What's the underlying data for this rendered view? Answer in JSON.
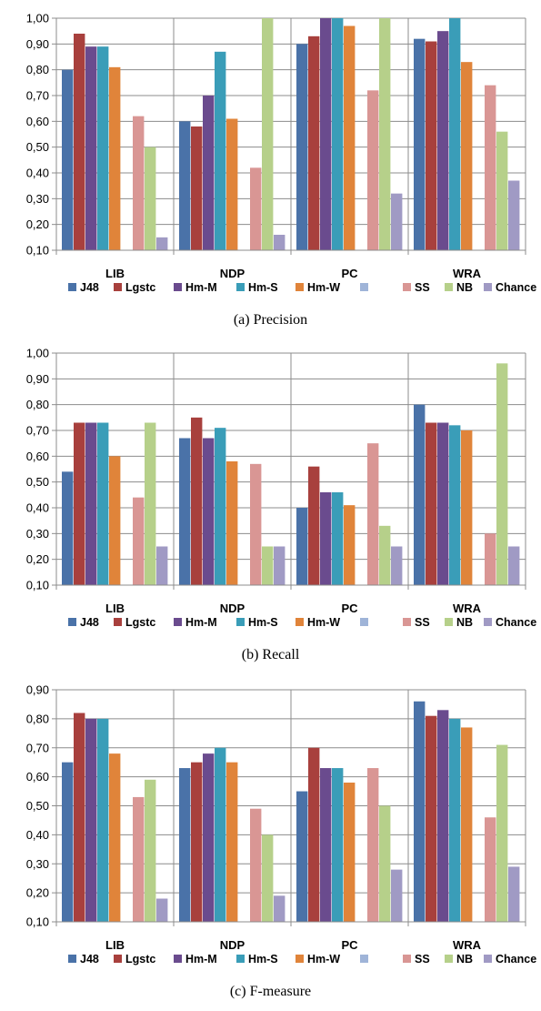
{
  "chart_data": [
    {
      "type": "bar",
      "caption": "(a) Precision",
      "categories": [
        "LIB",
        "NDP",
        "PC",
        "WRA"
      ],
      "ylim": [
        0.1,
        1.0
      ],
      "yticks": [
        "0,10",
        "0,20",
        "0,30",
        "0,40",
        "0,50",
        "0,60",
        "0,70",
        "0,80",
        "0,90",
        "1,00"
      ],
      "series": [
        {
          "name": "J48",
          "values": [
            0.8,
            0.6,
            0.9,
            0.92
          ]
        },
        {
          "name": "Lgstc",
          "values": [
            0.94,
            0.58,
            0.93,
            0.91
          ]
        },
        {
          "name": "Hm-M",
          "values": [
            0.89,
            0.7,
            1.0,
            0.95
          ]
        },
        {
          "name": "Hm-S",
          "values": [
            0.89,
            0.87,
            1.0,
            1.0
          ]
        },
        {
          "name": "Hm-W",
          "values": [
            0.81,
            0.61,
            0.97,
            0.83
          ]
        },
        {
          "name": "",
          "values": [
            null,
            null,
            null,
            null
          ]
        },
        {
          "name": "SS",
          "values": [
            0.62,
            0.42,
            0.72,
            0.74
          ]
        },
        {
          "name": "NB",
          "values": [
            0.5,
            1.0,
            1.0,
            0.56
          ]
        },
        {
          "name": "Chance",
          "values": [
            0.15,
            0.16,
            0.32,
            0.37
          ]
        }
      ]
    },
    {
      "type": "bar",
      "caption": "(b) Recall",
      "categories": [
        "LIB",
        "NDP",
        "PC",
        "WRA"
      ],
      "ylim": [
        0.1,
        1.0
      ],
      "yticks": [
        "0,10",
        "0,20",
        "0,30",
        "0,40",
        "0,50",
        "0,60",
        "0,70",
        "0,80",
        "0,90",
        "1,00"
      ],
      "series": [
        {
          "name": "J48",
          "values": [
            0.54,
            0.67,
            0.4,
            0.8
          ]
        },
        {
          "name": "Lgstc",
          "values": [
            0.73,
            0.75,
            0.56,
            0.73
          ]
        },
        {
          "name": "Hm-M",
          "values": [
            0.73,
            0.67,
            0.46,
            0.73
          ]
        },
        {
          "name": "Hm-S",
          "values": [
            0.73,
            0.71,
            0.46,
            0.72
          ]
        },
        {
          "name": "Hm-W",
          "values": [
            0.6,
            0.58,
            0.41,
            0.7
          ]
        },
        {
          "name": "",
          "values": [
            null,
            null,
            null,
            null
          ]
        },
        {
          "name": "SS",
          "values": [
            0.44,
            0.57,
            0.65,
            0.3
          ]
        },
        {
          "name": "NB",
          "values": [
            0.73,
            0.25,
            0.33,
            0.96
          ]
        },
        {
          "name": "Chance",
          "values": [
            0.25,
            0.25,
            0.25,
            0.25
          ]
        }
      ]
    },
    {
      "type": "bar",
      "caption": "(c) F-measure",
      "categories": [
        "LIB",
        "NDP",
        "PC",
        "WRA"
      ],
      "ylim": [
        0.1,
        0.9
      ],
      "yticks": [
        "0,10",
        "0,20",
        "0,30",
        "0,40",
        "0,50",
        "0,60",
        "0,70",
        "0,80",
        "0,90"
      ],
      "series": [
        {
          "name": "J48",
          "values": [
            0.65,
            0.63,
            0.55,
            0.86
          ]
        },
        {
          "name": "Lgstc",
          "values": [
            0.82,
            0.65,
            0.7,
            0.81
          ]
        },
        {
          "name": "Hm-M",
          "values": [
            0.8,
            0.68,
            0.63,
            0.83
          ]
        },
        {
          "name": "Hm-S",
          "values": [
            0.8,
            0.7,
            0.63,
            0.8
          ]
        },
        {
          "name": "Hm-W",
          "values": [
            0.68,
            0.65,
            0.58,
            0.77
          ]
        },
        {
          "name": "",
          "values": [
            null,
            null,
            null,
            null
          ]
        },
        {
          "name": "SS",
          "values": [
            0.53,
            0.49,
            0.63,
            0.46
          ]
        },
        {
          "name": "NB",
          "values": [
            0.59,
            0.4,
            0.5,
            0.71
          ]
        },
        {
          "name": "Chance",
          "values": [
            0.18,
            0.19,
            0.28,
            0.29
          ]
        }
      ]
    }
  ],
  "colors": [
    "#4a72a8",
    "#a8403d",
    "#6a4b8e",
    "#3a9db8",
    "#e0843a",
    "#9fb4d8",
    "#d99694",
    "#b6d08a",
    "#a09ac4"
  ]
}
